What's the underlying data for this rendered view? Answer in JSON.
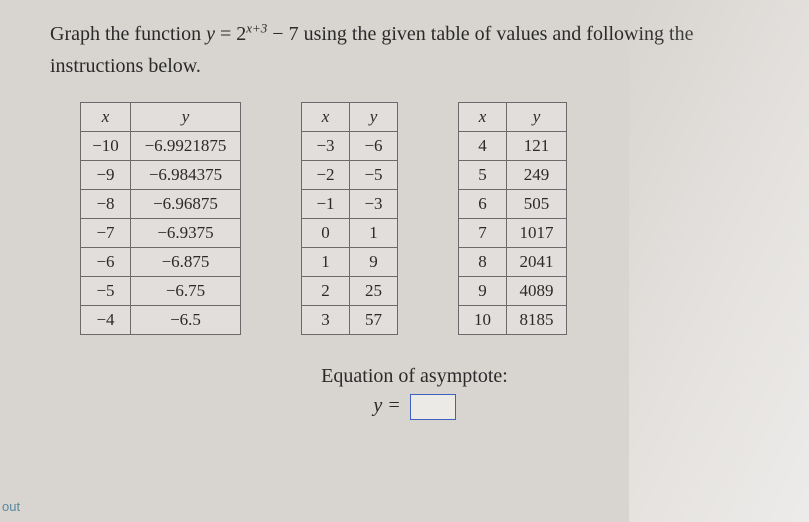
{
  "prompt": {
    "line1_pre": "Graph the function ",
    "eq_lhs": "y",
    "eq_eqsign": " = ",
    "eq_base": "2",
    "eq_exp": "x+3",
    "eq_rest": " − 7",
    "line1_post": " using the given table of values and following the",
    "line2": "instructions below."
  },
  "tables": {
    "headers": {
      "x": "x",
      "y": "y"
    },
    "t1": {
      "rows": [
        [
          "−10",
          "−6.9921875"
        ],
        [
          "−9",
          "−6.984375"
        ],
        [
          "−8",
          "−6.96875"
        ],
        [
          "−7",
          "−6.9375"
        ],
        [
          "−6",
          "−6.875"
        ],
        [
          "−5",
          "−6.75"
        ],
        [
          "−4",
          "−6.5"
        ]
      ]
    },
    "t2": {
      "rows": [
        [
          "−3",
          "−6"
        ],
        [
          "−2",
          "−5"
        ],
        [
          "−1",
          "−3"
        ],
        [
          "0",
          "1"
        ],
        [
          "1",
          "9"
        ],
        [
          "2",
          "25"
        ],
        [
          "3",
          "57"
        ]
      ]
    },
    "t3": {
      "rows": [
        [
          "4",
          "121"
        ],
        [
          "5",
          "249"
        ],
        [
          "6",
          "505"
        ],
        [
          "7",
          "1017"
        ],
        [
          "8",
          "2041"
        ],
        [
          "9",
          "4089"
        ],
        [
          "10",
          "8185"
        ]
      ]
    }
  },
  "asymptote": {
    "label": "Equation of asymptote:",
    "eq_lhs": "y =",
    "value": ""
  },
  "edge_label": "out",
  "style": {
    "bg": "#d8d4d0",
    "border": "#6a6a6a",
    "box_border": "#4060c0",
    "font_body": 20,
    "font_cell": 17
  }
}
